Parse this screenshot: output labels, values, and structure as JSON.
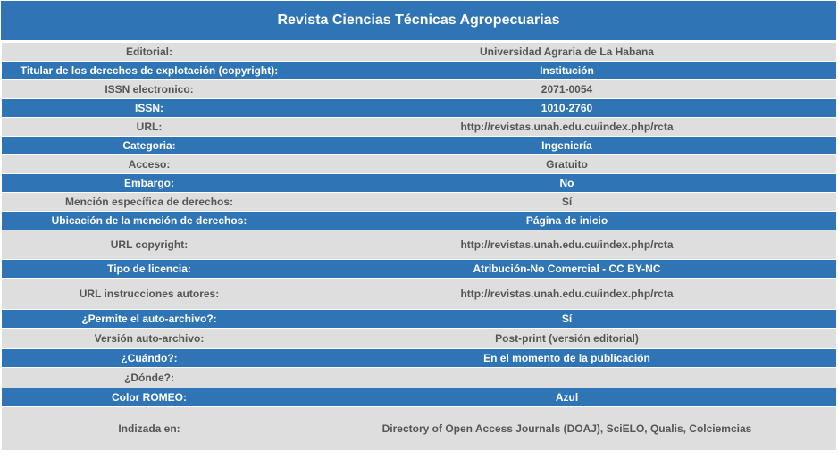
{
  "title": "Revista Ciencias Técnicas Agropecuarias",
  "rows": [
    {
      "label": "Editorial:",
      "value": "Universidad Agraria de La Habana"
    },
    {
      "label": "Titular de los derechos de explotación (copyright):",
      "value": "Institución"
    },
    {
      "label": "ISSN electronico:",
      "value": "2071-0054"
    },
    {
      "label": "ISSN:",
      "value": "1010-2760"
    },
    {
      "label": "URL:",
      "value": "http://revistas.unah.edu.cu/index.php/rcta"
    },
    {
      "label": "Categoria:",
      "value": "Ingeniería"
    },
    {
      "label": "Acceso:",
      "value": "Gratuito"
    },
    {
      "label": "Embargo:",
      "value": "No"
    },
    {
      "label": "Mención específica de derechos:",
      "value": "Sí"
    },
    {
      "label": "Ubicación de la mención de derechos:",
      "value": "Página de inicio"
    },
    {
      "label": "URL copyright:",
      "value": "http://revistas.unah.edu.cu/index.php/rcta"
    },
    {
      "label": "Tipo de licencia:",
      "value": "Atribución-No Comercial - CC BY-NC"
    },
    {
      "label": "URL instrucciones autores:",
      "value": "http://revistas.unah.edu.cu/index.php/rcta"
    },
    {
      "label": "¿Permite el auto-archivo?:",
      "value": "Sí"
    },
    {
      "label": "Versión auto-archivo:",
      "value": "Post-print (versión editorial)"
    },
    {
      "label": "¿Cuándo?:",
      "value": "En el momento de la publicación"
    },
    {
      "label": "¿Dónde?:",
      "value": ""
    },
    {
      "label": "Color ROMEO:",
      "value": "Azul"
    },
    {
      "label": "Indizada en:",
      "value": "Directory of Open Access Journals (DOAJ), SciELO, Qualis, Colciemcias"
    }
  ],
  "colors": {
    "header_blue": "#2f75b5",
    "row_gray": "#dedede"
  }
}
